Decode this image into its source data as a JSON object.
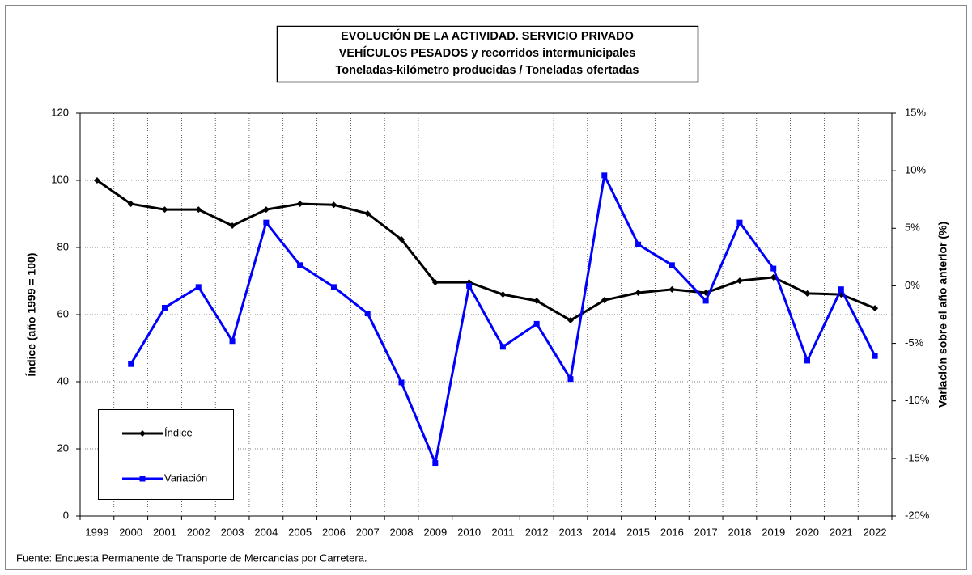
{
  "chart_data": {
    "type": "line",
    "title": [
      "EVOLUCIÓN  DE  LA  ACTIVIDAD.  SERVICIO  PRIVADO",
      "VEHÍCULOS  PESADOS  y  recorridos  intermunicipales",
      "Toneladas-kilómetro producidas / Toneladas ofertadas"
    ],
    "y_label": "Índice (año 1999 = 100)",
    "y2_label": "Variación sobre el año anterior (%)",
    "source": "Fuente: Encuesta Permanente de Transporte de Mercancías por Carretera.",
    "categories": [
      "1999",
      "2000",
      "2001",
      "2002",
      "2003",
      "2004",
      "2005",
      "2006",
      "2007",
      "2008",
      "2009",
      "2010",
      "2011",
      "2012",
      "2013",
      "2014",
      "2015",
      "2016",
      "2017",
      "2018",
      "2019",
      "2020",
      "2021",
      "2022"
    ],
    "series": [
      {
        "name": "Índice",
        "color": "#000000",
        "marker": "diamond",
        "axis": "y",
        "values": [
          100,
          93.0,
          91.3,
          91.3,
          86.5,
          91.3,
          93.0,
          92.7,
          90.1,
          82.4,
          69.6,
          69.6,
          66.0,
          64.1,
          58.3,
          64.3,
          66.5,
          67.5,
          66.5,
          70.1,
          71.1,
          66.3,
          66.0,
          61.9
        ]
      },
      {
        "name": "Variación",
        "color": "#0000ff",
        "marker": "square",
        "axis": "y2",
        "values": [
          null,
          -6.8,
          -1.9,
          -0.1,
          -4.8,
          5.5,
          1.8,
          -0.1,
          -2.4,
          -8.4,
          -15.4,
          0.0,
          -5.3,
          -3.3,
          -8.1,
          9.6,
          3.6,
          1.8,
          -1.3,
          5.5,
          1.5,
          -6.5,
          -0.3,
          -6.1
        ]
      }
    ],
    "ylim": [
      0,
      120
    ],
    "yticks": [
      0,
      20,
      40,
      60,
      80,
      100,
      120
    ],
    "y2lim": [
      -20,
      15
    ],
    "y2ticks": [
      {
        "value": -20,
        "label": "-20%"
      },
      {
        "value": -15,
        "label": "-15%"
      },
      {
        "value": -10,
        "label": "-10%"
      },
      {
        "value": -5,
        "label": "-5%"
      },
      {
        "value": 0,
        "label": "0%"
      },
      {
        "value": 5,
        "label": "5%"
      },
      {
        "value": 10,
        "label": "10%"
      },
      {
        "value": 15,
        "label": "15%"
      }
    ],
    "grid": true,
    "legend": "lower left"
  }
}
